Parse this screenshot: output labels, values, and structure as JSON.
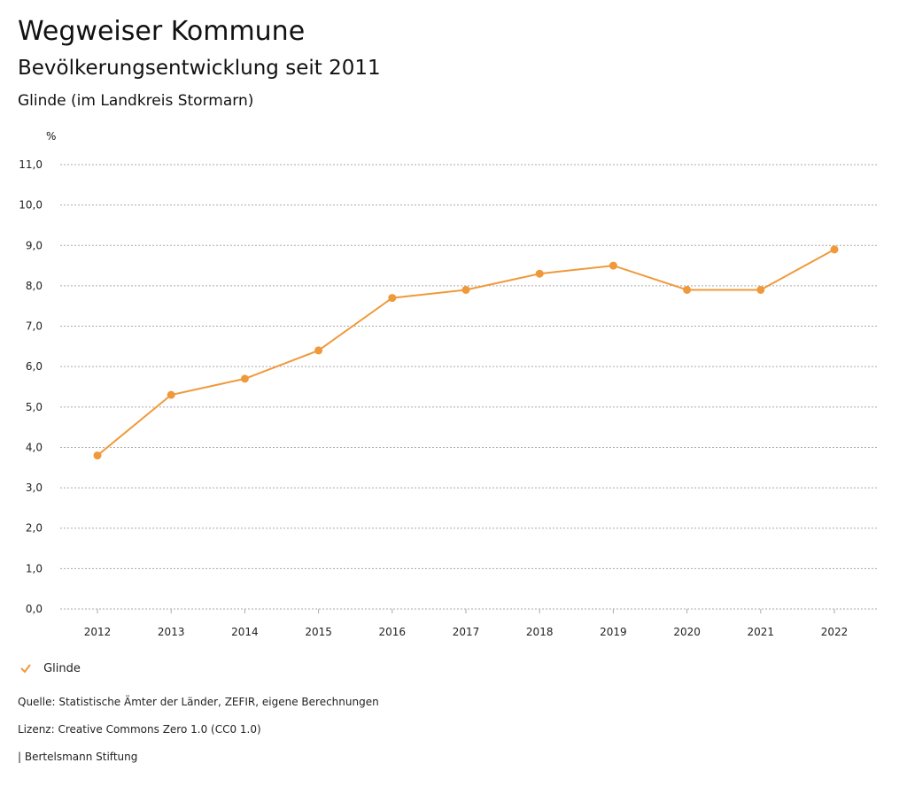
{
  "header": {
    "title": "Wegweiser Kommune",
    "subtitle": "Bevölkerungsentwicklung seit 2011",
    "region": "Glinde (im Landkreis Stormarn)"
  },
  "chart_data": {
    "type": "line",
    "ylabel": "%",
    "ylim": [
      0,
      11
    ],
    "yticks": [
      "0,0",
      "1,0",
      "2,0",
      "3,0",
      "4,0",
      "5,0",
      "6,0",
      "7,0",
      "8,0",
      "9,0",
      "10,0",
      "11,0"
    ],
    "categories": [
      "2012",
      "2013",
      "2014",
      "2015",
      "2016",
      "2017",
      "2018",
      "2019",
      "2020",
      "2021",
      "2022"
    ],
    "series": [
      {
        "name": "Glinde",
        "color": "#f0993a",
        "values": [
          3.8,
          5.3,
          5.7,
          6.4,
          7.7,
          7.9,
          8.3,
          8.5,
          7.9,
          7.9,
          8.9
        ]
      }
    ],
    "grid": true,
    "legend": "bottom-left"
  },
  "footer": {
    "source": "Quelle: Statistische Ämter der Länder, ZEFIR, eigene Berechnungen",
    "license": "Lizenz: Creative Commons Zero 1.0 (CC0 1.0)",
    "brand": "| Bertelsmann Stiftung"
  }
}
